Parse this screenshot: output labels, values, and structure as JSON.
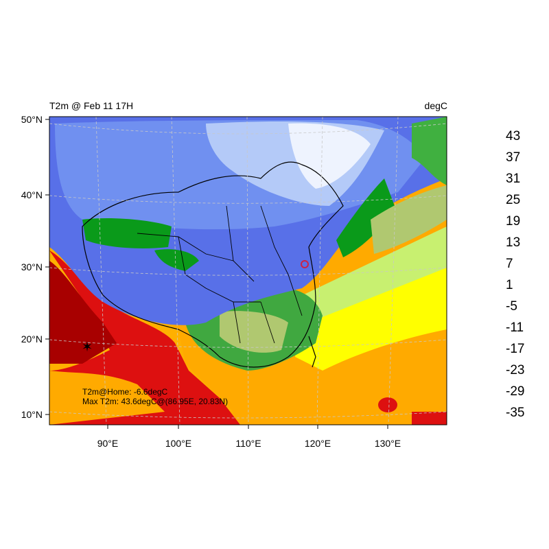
{
  "title_left": "T2m @ Feb 11 17H",
  "title_right": "degC",
  "lat_labels": [
    "50°N",
    "40°N",
    "30°N",
    "20°N",
    "10°N"
  ],
  "lon_labels": [
    "90°E",
    "100°E",
    "110°E",
    "120°E",
    "130°E"
  ],
  "annotations": {
    "home": "T2m@Home: -6.6degC",
    "max": "Max T2m: 43.6degC@(86.95E, 20.83N)"
  },
  "colorbar": {
    "labels": [
      "43",
      "37",
      "31",
      "25",
      "19",
      "13",
      "7",
      "1",
      "-5",
      "-11",
      "-17",
      "-23",
      "-29",
      "-35"
    ],
    "colors": [
      "#000000",
      "#6b0000",
      "#8f0000",
      "#b00000",
      "#cc0000",
      "#e60000",
      "#ff8c00",
      "#ffb000",
      "#ffff00",
      "#ffff70",
      "#c8ff70",
      "#a8e060",
      "#b0c870",
      "#80d060",
      "#40b040",
      "#0a9a1a",
      "#5870e8",
      "#6480ec",
      "#7090f0",
      "#80a0f2",
      "#90b0f4",
      "#a0bcf6",
      "#b4caf8",
      "#c8d8fa",
      "#dce6fc",
      "#eef3fe",
      "#ffffff"
    ]
  },
  "marker_colors": {
    "home": "#cc2244",
    "max": "#000000"
  }
}
